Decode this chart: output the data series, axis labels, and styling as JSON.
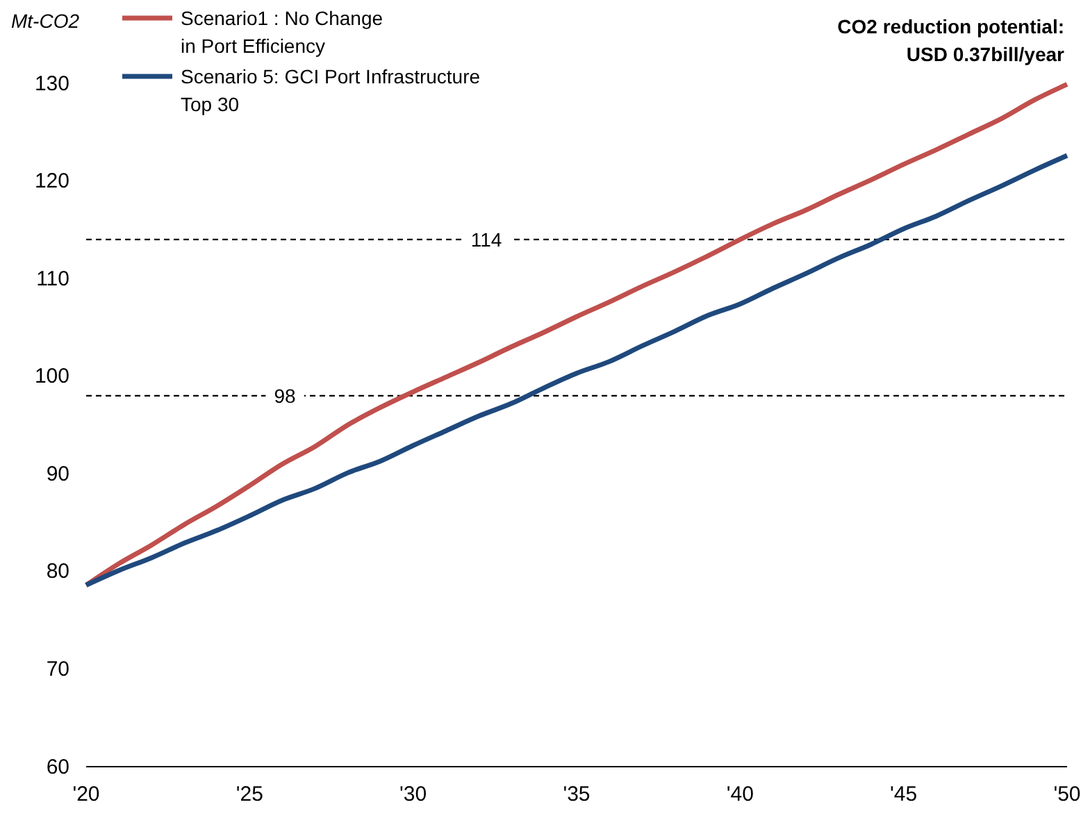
{
  "chart_data": {
    "type": "line",
    "ylabel": "Mt-CO2",
    "annotations": [
      "CO2 reduction potential:\nUSD 0.37bill/year"
    ],
    "x": [
      2020,
      2021,
      2022,
      2023,
      2024,
      2025,
      2026,
      2027,
      2028,
      2029,
      2030,
      2031,
      2032,
      2033,
      2034,
      2035,
      2036,
      2037,
      2038,
      2039,
      2040,
      2041,
      2042,
      2043,
      2044,
      2045,
      2046,
      2047,
      2048,
      2049,
      2050
    ],
    "series": [
      {
        "name": "Scenario1 : No Change in Port Efficiency",
        "color": "#c0504d",
        "values": [
          78.6,
          80.8,
          82.7,
          84.8,
          86.7,
          88.8,
          91.0,
          92.8,
          95.0,
          96.8,
          98.4,
          99.9,
          101.4,
          103.0,
          104.5,
          106.1,
          107.6,
          109.2,
          110.7,
          112.3,
          114.0,
          115.6,
          117.0,
          118.6,
          120.1,
          121.7,
          123.2,
          124.8,
          126.4,
          128.3,
          129.9
        ]
      },
      {
        "name": "Scenario 5: GCI Port Infrastructure Top 30",
        "color": "#1f497d",
        "values": [
          78.6,
          80.1,
          81.4,
          82.9,
          84.2,
          85.7,
          87.3,
          88.5,
          90.1,
          91.3,
          92.9,
          94.4,
          95.9,
          97.2,
          98.8,
          100.3,
          101.5,
          103.1,
          104.6,
          106.2,
          107.4,
          109.0,
          110.5,
          112.1,
          113.5,
          115.1,
          116.4,
          118.0,
          119.5,
          121.1,
          122.6
        ]
      }
    ],
    "xlim": [
      2020,
      2050
    ],
    "xticks": [
      {
        "value": 2020,
        "label": "'20"
      },
      {
        "value": 2025,
        "label": "'25"
      },
      {
        "value": 2030,
        "label": "'30"
      },
      {
        "value": 2035,
        "label": "'35"
      },
      {
        "value": 2040,
        "label": "'40"
      },
      {
        "value": 2045,
        "label": "'45"
      },
      {
        "value": 2050,
        "label": "'50"
      }
    ],
    "ylim": [
      60,
      130
    ],
    "yticks": [
      60,
      70,
      80,
      90,
      100,
      110,
      120,
      130
    ],
    "ref_lines": [
      {
        "axis": "y",
        "value": 114,
        "label": "114",
        "line_style": "dashed",
        "color": "#000000"
      },
      {
        "axis": "y",
        "value": 98,
        "label": "98",
        "line_style": "dashed",
        "color": "#000000"
      }
    ],
    "grid": false,
    "legend": "top left",
    "line_style": "solid",
    "marker": "none"
  }
}
